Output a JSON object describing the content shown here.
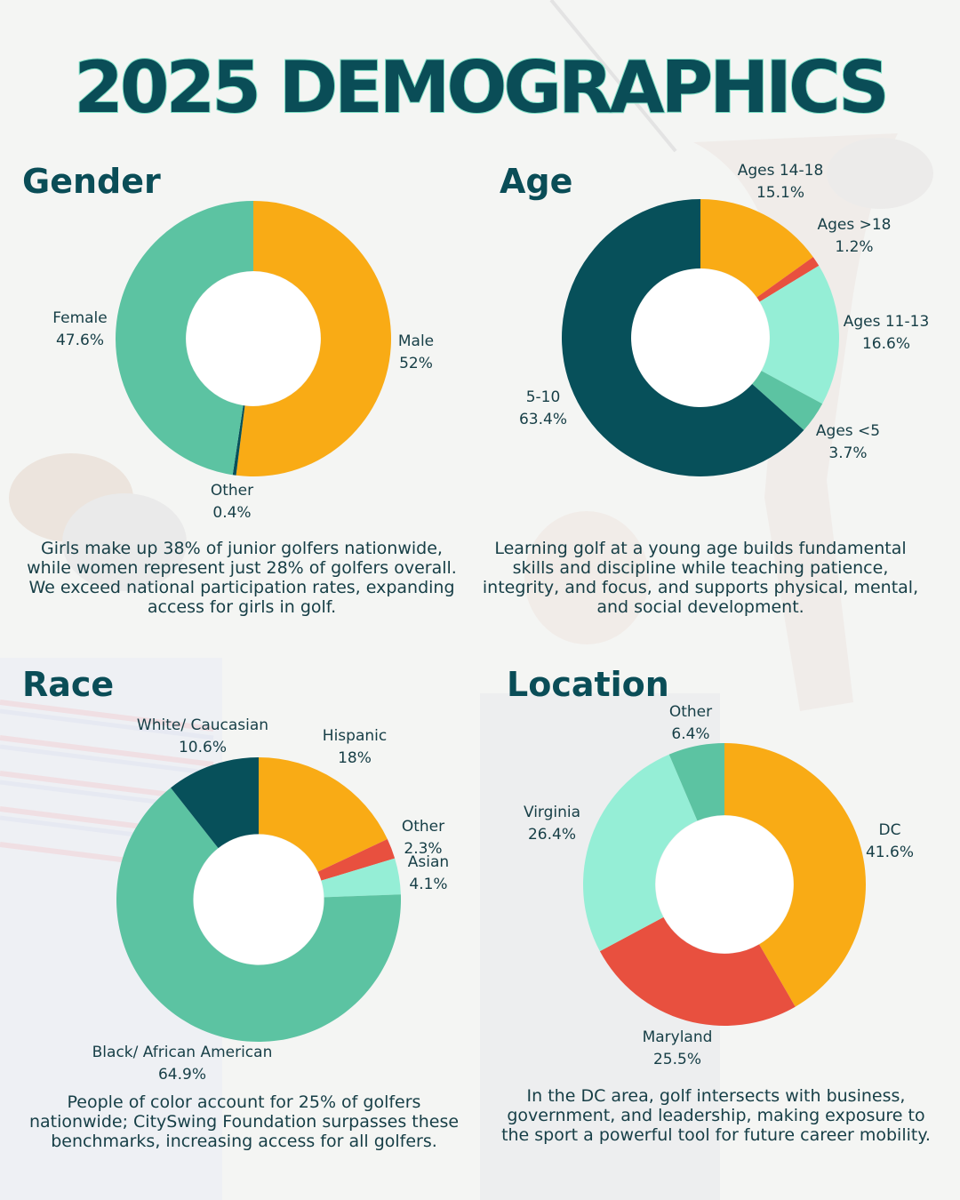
{
  "title": "2025 DEMOGRAPHICS",
  "colors": {
    "orange": "#f9ab15",
    "teal_dark": "#07505a",
    "green": "#5cc3a2",
    "mint": "#95eed6",
    "red": "#e8503f",
    "navy": "#0a4d57"
  },
  "chart_data": [
    {
      "type": "pie",
      "section": "Gender",
      "categories": [
        "Male",
        "Other",
        "Female"
      ],
      "values": [
        52,
        0.4,
        47.6
      ],
      "value_labels": [
        "52%",
        "0.4%",
        "47.6%"
      ],
      "colors": [
        "#f9ab15",
        "#07505a",
        "#5cc3a2"
      ],
      "description": "Girls make up 38% of junior golfers nationwide, while women represent just 28% of golfers overall. We exceed national participation rates, expanding access for girls in golf."
    },
    {
      "type": "pie",
      "section": "Age",
      "categories": [
        "Ages 14-18",
        "Ages >18",
        "Ages 11-13",
        "Ages <5",
        "5-10"
      ],
      "values": [
        15.1,
        1.2,
        16.6,
        3.7,
        63.4
      ],
      "value_labels": [
        "15.1%",
        "1.2%",
        "16.6%",
        "3.7%",
        "63.4%"
      ],
      "colors": [
        "#f9ab15",
        "#e8503f",
        "#95eed6",
        "#5cc3a2",
        "#07505a"
      ],
      "description": "Learning golf at a young age builds fundamental skills and discipline while teaching patience, integrity, and focus, and supports physical, mental, and social development."
    },
    {
      "type": "pie",
      "section": "Race",
      "categories": [
        "Hispanic",
        "Other",
        "Asian",
        "Black/ African American",
        "White/ Caucasian"
      ],
      "values": [
        18,
        2.3,
        4.1,
        64.9,
        10.6
      ],
      "value_labels": [
        "18%",
        "2.3%",
        "4.1%",
        "64.9%",
        "10.6%"
      ],
      "colors": [
        "#f9ab15",
        "#e8503f",
        "#95eed6",
        "#5cc3a2",
        "#07505a"
      ],
      "description": "People of color account for 25% of golfers nationwide; CitySwing Foundation surpasses these benchmarks, increasing access for all golfers."
    },
    {
      "type": "pie",
      "section": "Location",
      "categories": [
        "DC",
        "Maryland",
        "Virginia",
        "Other"
      ],
      "values": [
        41.6,
        25.5,
        26.4,
        6.4
      ],
      "value_labels": [
        "41.6%",
        "25.5%",
        "26.4%",
        "6.4%"
      ],
      "colors": [
        "#f9ab15",
        "#e8503f",
        "#95eed6",
        "#5cc3a2"
      ],
      "description": "In the DC area, golf intersects with business, government, and leadership, making exposure to the sport a powerful tool for future career mobility."
    }
  ]
}
